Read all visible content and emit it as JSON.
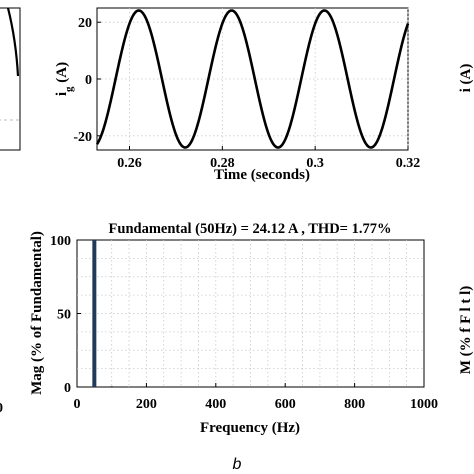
{
  "figure": {
    "sub_label": "b",
    "left_edge_fragment_tick": "0",
    "right_edge_fragments": [
      "i (A)",
      "M (% f F l t l)"
    ]
  },
  "chart_data": [
    {
      "type": "line",
      "title": "",
      "xlabel": "Time (seconds)",
      "ylabel": "i_g (A)",
      "ylabel_main": "i",
      "ylabel_sub": "g",
      "ylabel_unit": " (A)",
      "xlim": [
        0.253,
        0.32
      ],
      "ylim": [
        -25,
        25
      ],
      "xticks": [
        0.26,
        0.28,
        0.3,
        0.32
      ],
      "xtick_labels": [
        "0.26",
        "0.28",
        "0.3",
        "0.32"
      ],
      "yticks": [
        20,
        0,
        -20
      ],
      "ytick_labels": [
        "20",
        "0",
        "-20"
      ],
      "grid": true,
      "series": [
        {
          "amplitude": 24.12,
          "frequency_hz": 50,
          "phase_shift_s": 0.262,
          "color": "#000000"
        }
      ]
    },
    {
      "type": "bar",
      "title": "Fundamental (50Hz) = 24.12 A , THD= 1.77%",
      "xlabel": "Frequency (Hz)",
      "ylabel": "Mag (% of Fundamental)",
      "xlim": [
        0,
        1000
      ],
      "ylim": [
        0,
        100
      ],
      "xticks": [
        0,
        200,
        400,
        600,
        800,
        1000
      ],
      "xtick_labels": [
        "0",
        "200",
        "400",
        "600",
        "800",
        "1000"
      ],
      "yticks": [
        0,
        50,
        100
      ],
      "ytick_labels": [
        "0",
        "50",
        "100"
      ],
      "grid": true,
      "bar_color": "#1f3a5a",
      "x": [
        50,
        100,
        150
      ],
      "values": [
        100,
        0.6,
        0.3
      ]
    }
  ]
}
